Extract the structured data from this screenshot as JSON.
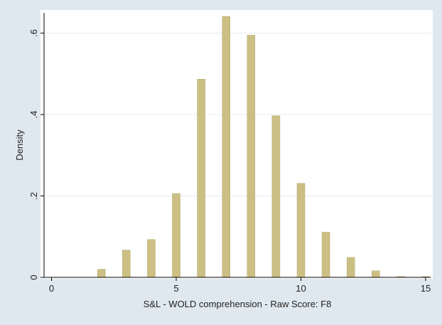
{
  "chart_data": {
    "type": "bar",
    "title": "",
    "xlabel": "S&L - WOLD comprehension - Raw Score: F8",
    "ylabel": "Density",
    "xlim": [
      -0.3,
      15.2
    ],
    "ylim": [
      0,
      0.65
    ],
    "xticks": [
      0,
      5,
      10,
      15
    ],
    "xtick_labels": [
      "0",
      "5",
      "10",
      "15"
    ],
    "yticks": [
      0,
      0.2,
      0.4,
      0.6
    ],
    "ytick_labels": [
      "0",
      ".2",
      ".4",
      ".6"
    ],
    "grid": true,
    "bar_color": "#cbbf84",
    "bar_edge_color": "#b3a96f",
    "x": [
      2,
      3,
      4,
      5,
      6,
      7,
      8,
      9,
      10,
      11,
      12,
      13,
      14,
      15
    ],
    "values": [
      0.02,
      0.067,
      0.093,
      0.206,
      0.487,
      0.641,
      0.595,
      0.397,
      0.231,
      0.111,
      0.049,
      0.016,
      0.002,
      0.002
    ]
  }
}
